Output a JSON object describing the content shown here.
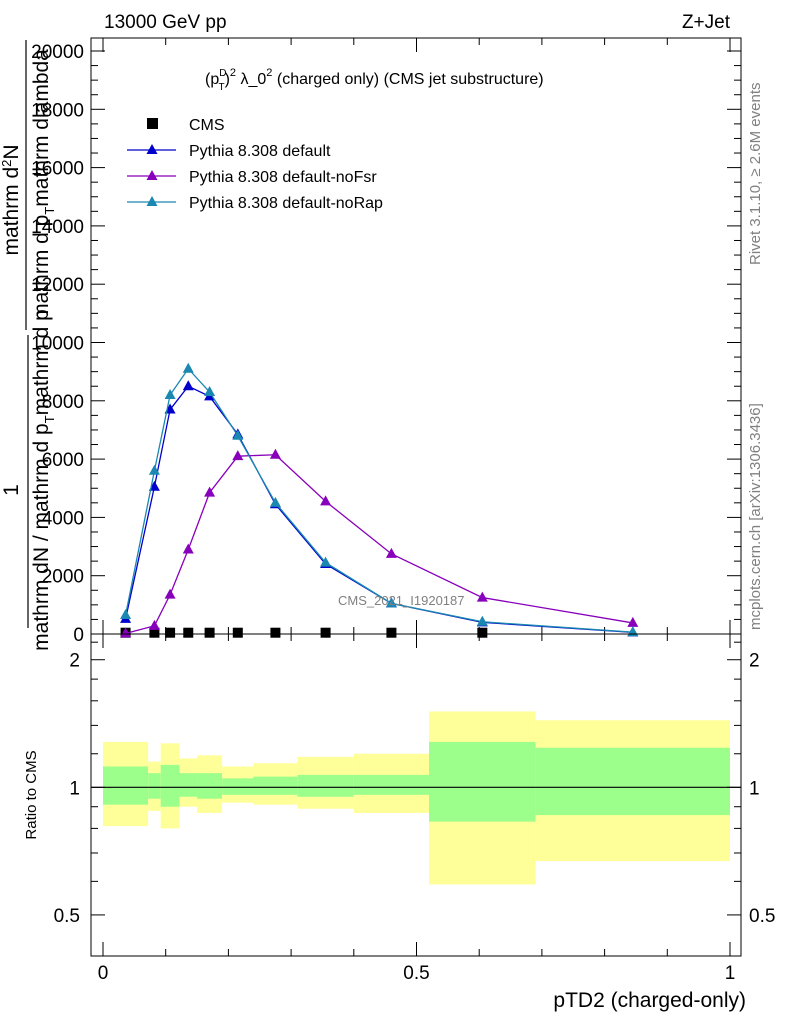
{
  "header": {
    "left": "13000 GeV pp",
    "right": "Z+Jet"
  },
  "side": {
    "rivet": "Rivet 3.1.10, ≥ 2.6M events",
    "mcplots": "mcplots.cern.ch [arXiv:1306.3436]"
  },
  "chart_data": [
    {
      "type": "line",
      "title": "(p_T^D)^2 λ_0^2 (charged only) (CMS jet substructure)",
      "title_main": "λ_0",
      "title_tail": "(charged only) (CMS jet substructure)",
      "title_parts": {
        "p": "(p",
        "sub": "T",
        "sup": "D",
        "close": ")",
        "sup2": "2",
        "sup3": "2"
      },
      "ylabel_parts": [
        "1",
        "mathrm d N / mathrm d p_T mathrm d lambda",
        "mathrm d^{2}N",
        "mathrm d p_T mathrm d lambda"
      ],
      "ylabel_display": {
        "one": "1",
        "den": "mathrm dN / mathrm d p",
        "den_sub": "T",
        "den_tail": "mathrm d p",
        "num": "mathrm d",
        "num_sup": "2",
        "num_tail": "N",
        "den2": "mathrm d p",
        "den2_sub": "T",
        "den2_tail": "mathrm dlambda"
      },
      "watermark": "CMS_2021_I1920187",
      "xlim": [
        0,
        1
      ],
      "ylim": [
        0,
        20500
      ],
      "yticks": [
        0,
        2000,
        4000,
        6000,
        8000,
        10000,
        12000,
        14000,
        16000,
        18000,
        20000
      ],
      "ytick_labels": [
        "0",
        "2000",
        "4000",
        "6000",
        "8000",
        "10000",
        "12000",
        "14000",
        "16000",
        "18000",
        "20000"
      ],
      "legend_position": "top-left",
      "series": [
        {
          "name": "CMS",
          "color": "#000000",
          "marker": "square",
          "x": [
            0.036,
            0.082,
            0.107,
            0.136,
            0.17,
            0.215,
            0.275,
            0.355,
            0.46,
            0.605
          ],
          "y": [
            10,
            10,
            10,
            10,
            10,
            10,
            10,
            10,
            10,
            10
          ]
        },
        {
          "name": "Pythia 8.308 default",
          "color": "#0000cc",
          "marker": "triangle",
          "x": [
            0.036,
            0.082,
            0.107,
            0.136,
            0.17,
            0.215,
            0.275,
            0.355,
            0.46,
            0.605,
            0.845
          ],
          "y": [
            520,
            5050,
            7700,
            8500,
            8150,
            6850,
            4450,
            2400,
            1050,
            400,
            55
          ]
        },
        {
          "name": "Pythia 8.308 default-noFsr",
          "color": "#8800bb",
          "marker": "triangle",
          "x": [
            0.036,
            0.082,
            0.107,
            0.136,
            0.17,
            0.215,
            0.275,
            0.355,
            0.46,
            0.605,
            0.845
          ],
          "y": [
            20,
            280,
            1350,
            2900,
            4850,
            6100,
            6150,
            4550,
            2750,
            1250,
            380
          ]
        },
        {
          "name": "Pythia 8.308 default-noRap",
          "color": "#1a88b0",
          "marker": "triangle",
          "x": [
            0.036,
            0.082,
            0.107,
            0.136,
            0.17,
            0.215,
            0.275,
            0.355,
            0.46,
            0.605,
            0.845
          ],
          "y": [
            650,
            5600,
            8200,
            9100,
            8300,
            6800,
            4500,
            2450,
            1050,
            420,
            65
          ]
        }
      ]
    },
    {
      "type": "area",
      "ylabel": "Ratio to CMS",
      "xlabel": "pTD2 (charged-only)",
      "xlim": [
        0,
        1
      ],
      "ylim": [
        0.4,
        2.3
      ],
      "log_scale_y": true,
      "yticks": [
        0.5,
        1,
        2
      ],
      "ytick_labels": [
        "0.5",
        "1",
        "2"
      ],
      "xticks": [
        0,
        0.5,
        1
      ],
      "xtick_labels": [
        "0",
        "0.5",
        "1"
      ],
      "bands": {
        "bin_edges": [
          0.0,
          0.072,
          0.092,
          0.122,
          0.15,
          0.19,
          0.24,
          0.31,
          0.4,
          0.52,
          0.69,
          1.0
        ],
        "stat_low": [
          0.91,
          0.94,
          0.9,
          0.95,
          0.94,
          0.96,
          0.96,
          0.95,
          0.96,
          0.83,
          0.86
        ],
        "stat_high": [
          1.12,
          1.08,
          1.13,
          1.08,
          1.08,
          1.05,
          1.06,
          1.07,
          1.07,
          1.28,
          1.24
        ],
        "total_low": [
          0.81,
          0.88,
          0.8,
          0.9,
          0.87,
          0.92,
          0.91,
          0.89,
          0.87,
          0.59,
          0.67
        ],
        "total_high": [
          1.28,
          1.15,
          1.27,
          1.17,
          1.19,
          1.12,
          1.14,
          1.18,
          1.2,
          1.51,
          1.44
        ]
      },
      "colors": {
        "stat": "#9cff8c",
        "total": "#ffff99"
      },
      "reference_line": 1
    }
  ]
}
